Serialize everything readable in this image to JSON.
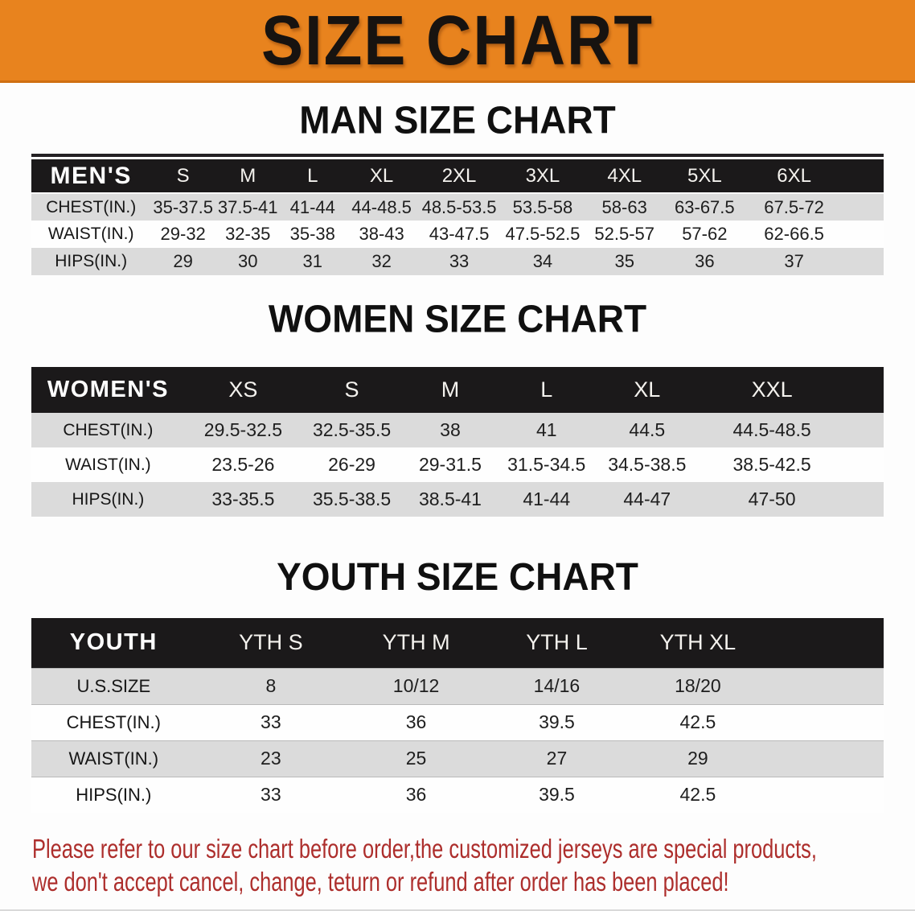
{
  "banner": {
    "title": "SIZE CHART"
  },
  "theme": {
    "banner_bg": "#E8831E",
    "table_header_bg": "#1B191A",
    "row_alt_bg": "#DBDBDB",
    "disclaimer_color": "#AD2E2C"
  },
  "sections": [
    {
      "heading": "MAN SIZE CHART",
      "table": {
        "header_label": "MEN'S",
        "columns": [
          "S",
          "M",
          "L",
          "XL",
          "2XL",
          "3XL",
          "4XL",
          "5XL",
          "6XL"
        ],
        "rows": [
          {
            "label": "CHEST(IN.)",
            "values": [
              "35-37.5",
              "37.5-41",
              "41-44",
              "44-48.5",
              "48.5-53.5",
              "53.5-58",
              "58-63",
              "63-67.5",
              "67.5-72"
            ]
          },
          {
            "label": "WAIST(IN.)",
            "values": [
              "29-32",
              "32-35",
              "35-38",
              "38-43",
              "43-47.5",
              "47.5-52.5",
              "52.5-57",
              "57-62",
              "62-66.5"
            ]
          },
          {
            "label": "HIPS(IN.)",
            "values": [
              "29",
              "30",
              "31",
              "32",
              "33",
              "34",
              "35",
              "36",
              "37"
            ]
          }
        ]
      }
    },
    {
      "heading": "WOMEN SIZE CHART",
      "table": {
        "header_label": "WOMEN'S",
        "columns": [
          "XS",
          "S",
          "M",
          "L",
          "XL",
          "XXL"
        ],
        "rows": [
          {
            "label": "CHEST(IN.)",
            "values": [
              "29.5-32.5",
              "32.5-35.5",
              "38",
              "41",
              "44.5",
              "44.5-48.5"
            ]
          },
          {
            "label": "WAIST(IN.)",
            "values": [
              "23.5-26",
              "26-29",
              "29-31.5",
              "31.5-34.5",
              "34.5-38.5",
              "38.5-42.5"
            ]
          },
          {
            "label": "HIPS(IN.)",
            "values": [
              "33-35.5",
              "35.5-38.5",
              "38.5-41",
              "41-44",
              "44-47",
              "47-50"
            ]
          }
        ]
      }
    },
    {
      "heading": "YOUTH SIZE CHART",
      "table": {
        "header_label": "YOUTH",
        "columns": [
          "YTH S",
          "YTH M",
          "YTH L",
          "YTH XL"
        ],
        "rows": [
          {
            "label": "U.S.SIZE",
            "values": [
              "8",
              "10/12",
              "14/16",
              "18/20"
            ]
          },
          {
            "label": "CHEST(IN.)",
            "values": [
              "33",
              "36",
              "39.5",
              "42.5"
            ]
          },
          {
            "label": "WAIST(IN.)",
            "values": [
              "23",
              "25",
              "27",
              "29"
            ]
          },
          {
            "label": "HIPS(IN.)",
            "values": [
              "33",
              "36",
              "39.5",
              "42.5"
            ]
          }
        ]
      }
    }
  ],
  "disclaimer": {
    "line1": "Please refer to our size chart before order,the customized jerseys are special products,",
    "line2": "we don't accept cancel, change, teturn or refund after order has been placed!"
  }
}
